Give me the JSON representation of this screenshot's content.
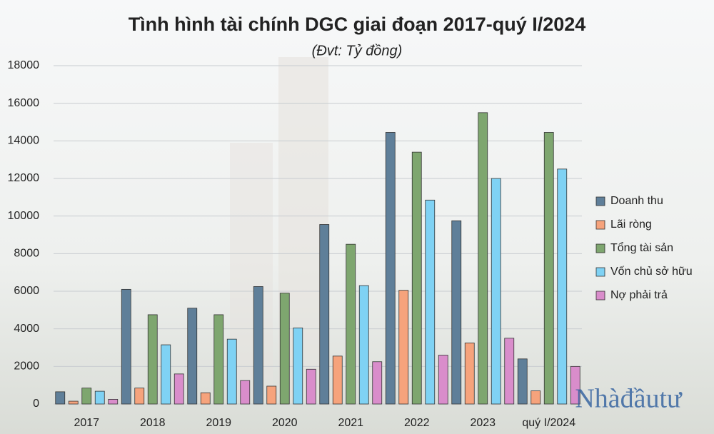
{
  "chart_data": {
    "type": "bar",
    "title": "Tình hình tài chính DGC giai đoạn 2017-quý I/2024",
    "subtitle": "(Đvt: Tỷ đồng)",
    "watermark": "Nhàđầutư",
    "categories": [
      "2017",
      "2018",
      "2019",
      "2020",
      "2021",
      "2022",
      "2023",
      "quý I/2024"
    ],
    "series": [
      {
        "name": "Doanh thu",
        "color": "#5f7f99",
        "values": [
          650,
          6100,
          5100,
          6250,
          9550,
          14450,
          9750,
          2400
        ]
      },
      {
        "name": "Lãi ròng",
        "color": "#f6a37c",
        "values": [
          150,
          850,
          600,
          950,
          2550,
          6050,
          3250,
          700
        ]
      },
      {
        "name": "Tổng tài sản",
        "color": "#7ea66f",
        "values": [
          850,
          4750,
          4750,
          5900,
          8500,
          13400,
          15500,
          14450
        ]
      },
      {
        "name": "Vốn chủ sở hữu",
        "color": "#7fd2f4",
        "values": [
          680,
          3150,
          3450,
          4050,
          6300,
          10850,
          12000,
          12500
        ]
      },
      {
        "name": "Nợ phải trả",
        "color": "#d98dcb",
        "values": [
          250,
          1600,
          1250,
          1850,
          2250,
          2600,
          3500,
          2000
        ]
      }
    ],
    "ylim": [
      0,
      18000
    ],
    "yticks": [
      0,
      2000,
      4000,
      6000,
      8000,
      10000,
      12000,
      14000,
      16000,
      18000
    ],
    "grid": true,
    "legend": "right"
  }
}
